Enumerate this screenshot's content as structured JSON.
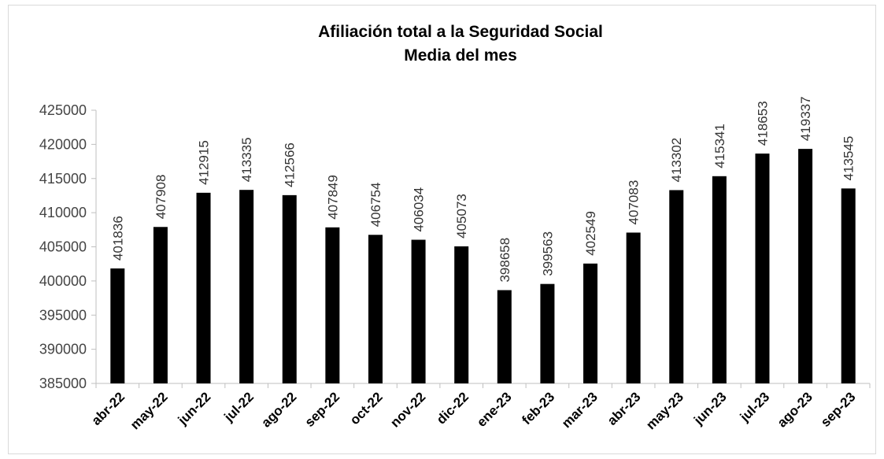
{
  "chart_data": {
    "type": "bar",
    "title": "Afiliación total a la Seguridad Social",
    "subtitle": "Media del mes",
    "categories": [
      "abr-22",
      "may-22",
      "jun-22",
      "jul-22",
      "ago-22",
      "sep-22",
      "oct-22",
      "nov-22",
      "dic-22",
      "ene-23",
      "feb-23",
      "mar-23",
      "abr-23",
      "may-23",
      "jun-23",
      "jul-23",
      "ago-23",
      "sep-23"
    ],
    "values": [
      401836,
      407908,
      412915,
      413335,
      412566,
      407849,
      406754,
      406034,
      405073,
      398658,
      399563,
      402549,
      407083,
      413302,
      415341,
      418653,
      419337,
      413545
    ],
    "color": "#000000",
    "ylim": [
      385000,
      425000
    ],
    "yticks": [
      385000,
      390000,
      395000,
      400000,
      405000,
      410000,
      415000,
      420000,
      425000
    ],
    "grid": false
  }
}
